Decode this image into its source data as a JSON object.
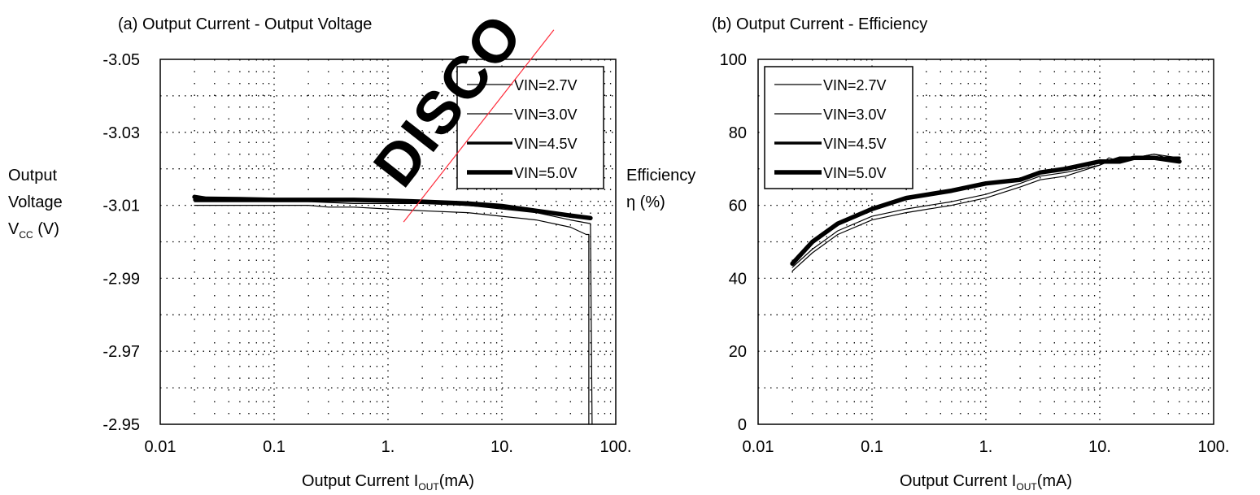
{
  "chart_data": [
    {
      "type": "line",
      "panel_title": "(a)  Output Current - Output Voltage",
      "xlabel_main": "Output Current I",
      "xlabel_sub": "OUT",
      "xlabel_unit": "(mA)",
      "ylabel_lines": [
        "Output",
        "Voltage",
        "V"
      ],
      "ylabel_sub": "CC",
      "ylabel_unit": " (V)",
      "xscale": "log",
      "xlim": [
        0.01,
        100
      ],
      "ylim": [
        -2.95,
        -3.05
      ],
      "y_inverted": true,
      "x_tick_labels": [
        "0.01",
        "0.1",
        "1.",
        "10.",
        "100."
      ],
      "x_tick_values": [
        0.01,
        0.1,
        1,
        10,
        100
      ],
      "y_tick_labels": [
        "-3.05",
        "-3.03",
        "-3.01",
        "-2.99",
        "-2.97",
        "-2.95"
      ],
      "y_tick_values": [
        -3.05,
        -3.03,
        -3.01,
        -2.99,
        -2.97,
        -2.95
      ],
      "grid": "dotted",
      "legend_position": "top-right",
      "series": [
        {
          "name": "VIN=2.7V",
          "x": [
            0.02,
            0.05,
            0.1,
            0.2,
            0.3,
            0.5,
            1,
            2,
            5,
            10,
            20,
            40,
            55,
            58,
            58
          ],
          "y": [
            -3.01,
            -3.01,
            -3.01,
            -3.01,
            -3.0095,
            -3.0095,
            -3.009,
            -3.0085,
            -3.008,
            -3.007,
            -3.006,
            -3.004,
            -3.002,
            -3.002,
            -2.95
          ]
        },
        {
          "name": "VIN=3.0V",
          "x": [
            0.02,
            0.05,
            0.1,
            0.2,
            0.5,
            1,
            2,
            5,
            10,
            20,
            40,
            60,
            62
          ],
          "y": [
            -3.011,
            -3.011,
            -3.011,
            -3.011,
            -3.0105,
            -3.0105,
            -3.0105,
            -3.01,
            -3.009,
            -3.008,
            -3.006,
            -3.005,
            -2.95
          ]
        },
        {
          "name": "VIN=4.5V",
          "x": [
            0.02,
            0.05,
            0.1,
            0.2,
            0.5,
            1,
            2,
            5,
            10,
            20,
            40,
            60
          ],
          "y": [
            -3.0115,
            -3.0115,
            -3.0113,
            -3.0113,
            -3.0113,
            -3.0112,
            -3.011,
            -3.0102,
            -3.0095,
            -3.0085,
            -3.007,
            -3.0065
          ]
        },
        {
          "name": "VIN=5.0V",
          "x": [
            0.02,
            0.025,
            0.05,
            0.1,
            0.2,
            0.5,
            1,
            2,
            5,
            10,
            20,
            40,
            60
          ],
          "y": [
            -3.0123,
            -3.0118,
            -3.0117,
            -3.0115,
            -3.0115,
            -3.0115,
            -3.0113,
            -3.011,
            -3.0105,
            -3.0098,
            -3.0085,
            -3.0072,
            -3.0065
          ]
        }
      ]
    },
    {
      "type": "line",
      "panel_title": "(b)  Output Current - Efficiency",
      "xlabel_main": "Output Current I",
      "xlabel_sub": "OUT",
      "xlabel_unit": "(mA)",
      "ylabel_lines": [
        "Efficiency",
        "η (%)"
      ],
      "xscale": "log",
      "xlim": [
        0.01,
        100
      ],
      "ylim": [
        0,
        100
      ],
      "x_tick_labels": [
        "0.01",
        "0.1",
        "1.",
        "10.",
        "100."
      ],
      "x_tick_values": [
        0.01,
        0.1,
        1,
        10,
        100
      ],
      "y_tick_labels": [
        "0",
        "20",
        "40",
        "60",
        "80",
        "100"
      ],
      "y_tick_values": [
        0,
        20,
        40,
        60,
        80,
        100
      ],
      "grid": "dotted",
      "legend_position": "top-left",
      "series": [
        {
          "name": "VIN=2.7V",
          "x": [
            0.02,
            0.03,
            0.05,
            0.1,
            0.2,
            0.5,
            1,
            2,
            3,
            5,
            10,
            12,
            15,
            20,
            30,
            50
          ],
          "y": [
            42,
            47,
            52,
            56,
            58,
            60,
            62,
            65,
            67,
            68,
            71,
            73,
            72,
            73,
            74,
            72
          ]
        },
        {
          "name": "VIN=3.0V",
          "x": [
            0.02,
            0.03,
            0.05,
            0.1,
            0.2,
            0.5,
            1,
            2,
            3,
            5,
            10,
            12,
            15,
            20,
            30,
            50
          ],
          "y": [
            43,
            48,
            53,
            57,
            59,
            61,
            63,
            66,
            68,
            69,
            71,
            72,
            72,
            73,
            74,
            73
          ]
        },
        {
          "name": "VIN=4.5V",
          "x": [
            0.02,
            0.03,
            0.05,
            0.1,
            0.2,
            0.5,
            1,
            2,
            3,
            5,
            10,
            12,
            15,
            20,
            30,
            50
          ],
          "y": [
            44,
            50,
            55,
            59,
            62,
            64,
            66,
            67,
            69,
            70,
            72,
            72,
            73,
            73,
            73,
            73
          ]
        },
        {
          "name": "VIN=5.0V",
          "x": [
            0.02,
            0.03,
            0.05,
            0.1,
            0.2,
            0.5,
            1,
            2,
            3,
            5,
            10,
            12,
            15,
            20,
            30,
            50
          ],
          "y": [
            44,
            50,
            55,
            59,
            62,
            64,
            66,
            67,
            69,
            70,
            72,
            72,
            72,
            73,
            73,
            72
          ]
        }
      ]
    }
  ],
  "series_style": {
    "VIN=2.7V": {
      "stroke": "#000000",
      "width": 1.2
    },
    "VIN=3.0V": {
      "stroke": "#000000",
      "width": 1.2
    },
    "VIN=4.5V": {
      "stroke": "#000000",
      "width": 3.5
    },
    "VIN=5.0V": {
      "stroke": "#000000",
      "width": 5.5
    }
  },
  "watermark": {
    "text": "DISCO",
    "color": "#ff2b3a"
  }
}
